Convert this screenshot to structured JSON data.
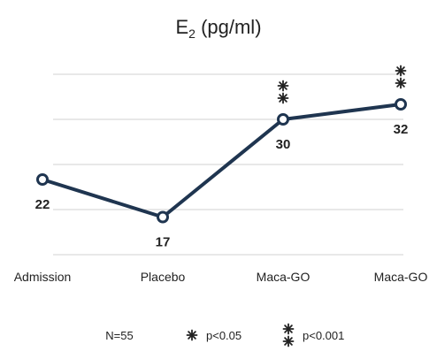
{
  "chart_data": {
    "type": "line",
    "title_main": "E",
    "title_sub": "2",
    "title_rest": " (pg/ml)",
    "categories": [
      "Admission",
      "Placebo",
      "Maca-GO",
      "Maca-GO"
    ],
    "series": [
      {
        "values": [
          22,
          17,
          30,
          32
        ]
      }
    ],
    "data_labels": [
      "22",
      "17",
      "30",
      "32"
    ],
    "significance": [
      "",
      "",
      "p<0.001",
      "p<0.001"
    ],
    "ylim": [
      12,
      36
    ],
    "grid": true,
    "legend": {
      "n_label": "N=55",
      "items": [
        {
          "symbol": "single-star",
          "label": "p<0.05"
        },
        {
          "symbol": "double-star",
          "label": "p<0.001"
        }
      ]
    },
    "colors": {
      "line": "#1f3550",
      "marker_fill": "#ffffff",
      "grid": "#d0d0d0"
    }
  }
}
